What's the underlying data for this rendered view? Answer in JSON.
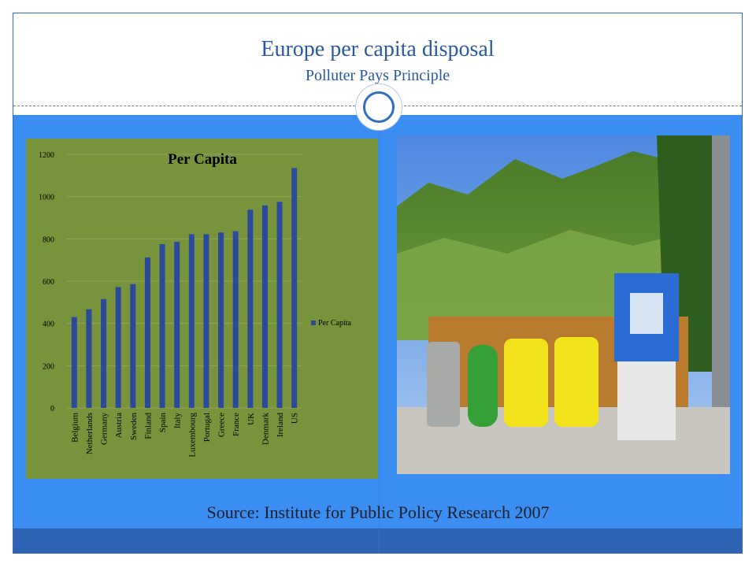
{
  "slide": {
    "title": "Europe per capita disposal",
    "subtitle": "Polluter Pays Principle",
    "source": "Source: Institute for Public Policy Research 2007"
  },
  "colors": {
    "slide_blue": "#3a8ef2",
    "chart_background": "#77933c",
    "bar": "#2b4b9a",
    "title_text": "#2a58a3"
  },
  "photo": {
    "subject": "recycling containers in a green valley"
  },
  "chart_data": {
    "type": "bar",
    "title": "Per Capita",
    "categories": [
      "Belgium",
      "Netherlands",
      "Germany",
      "Austria",
      "Sweden",
      "Finland",
      "Spain",
      "Italy",
      "Luxembourg",
      "Portugal",
      "Greece",
      "France",
      "UK",
      "Denmark",
      "Ireland",
      "US"
    ],
    "series": [
      {
        "name": "Per Capita",
        "values": [
          430,
          467,
          515,
          572,
          586,
          712,
          775,
          786,
          822,
          822,
          830,
          836,
          938,
          958,
          975,
          1135
        ]
      }
    ],
    "y_ticks": [
      "0",
      "200",
      "400",
      "600",
      "800",
      "1000",
      "1200"
    ],
    "ylim": [
      0,
      1200
    ],
    "legend_position": "right",
    "grid": true
  }
}
